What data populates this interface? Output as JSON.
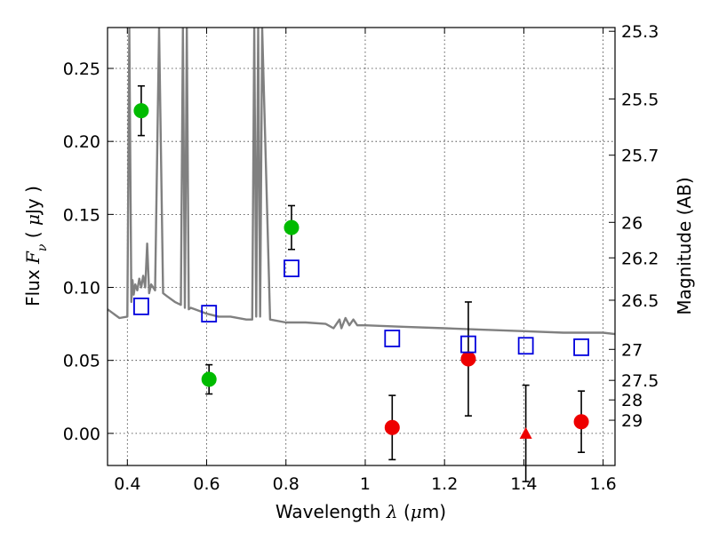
{
  "chart_data": {
    "type": "scatter",
    "title": "",
    "xlabel": {
      "prefix": "Wavelength  ",
      "symbol": "λ",
      "suffix": " (",
      "unit_symbol": "μ",
      "unit_rest": "m)"
    },
    "ylabel": {
      "prefix": "Flux  ",
      "symbol": "F",
      "subscript": "ν",
      "suffix": "  ( ",
      "unit_symbol": "μ",
      "unit_rest": "Jy )"
    },
    "y2label": "Magnitude (AB)",
    "xlim": [
      0.35,
      1.63
    ],
    "ylim": [
      -0.022,
      0.278
    ],
    "grid": true,
    "xticks": [
      {
        "value": 0.4,
        "label": "0.4"
      },
      {
        "value": 0.6,
        "label": "0.6"
      },
      {
        "value": 0.8,
        "label": "0.8"
      },
      {
        "value": 1.0,
        "label": "1"
      },
      {
        "value": 1.2,
        "label": "1.2"
      },
      {
        "value": 1.4,
        "label": "1.4"
      },
      {
        "value": 1.6,
        "label": "1.6"
      }
    ],
    "yticks": [
      {
        "value": 0.0,
        "label": "0.00"
      },
      {
        "value": 0.05,
        "label": "0.05"
      },
      {
        "value": 0.1,
        "label": "0.10"
      },
      {
        "value": 0.15,
        "label": "0.15"
      },
      {
        "value": 0.2,
        "label": "0.20"
      },
      {
        "value": 0.25,
        "label": "0.25"
      }
    ],
    "y2ticks": [
      {
        "label": "25.3",
        "mag": 25.3
      },
      {
        "label": "25.5",
        "mag": 25.5
      },
      {
        "label": "25.7",
        "mag": 25.7
      },
      {
        "label": "26",
        "mag": 26.0
      },
      {
        "label": "26.2",
        "mag": 26.2
      },
      {
        "label": "26.5",
        "mag": 26.5
      },
      {
        "label": "27",
        "mag": 27.0
      },
      {
        "label": "27.5",
        "mag": 27.5
      },
      {
        "label": "28",
        "mag": 28.0
      },
      {
        "label": "29",
        "mag": 29.0
      }
    ],
    "model_spectrum": {
      "color": "#808080",
      "x": [
        0.35,
        0.38,
        0.4,
        0.405,
        0.41,
        0.413,
        0.416,
        0.42,
        0.425,
        0.43,
        0.435,
        0.44,
        0.445,
        0.45,
        0.455,
        0.46,
        0.47,
        0.48,
        0.49,
        0.5,
        0.52,
        0.535,
        0.54,
        0.545,
        0.55,
        0.555,
        0.56,
        0.58,
        0.6,
        0.63,
        0.66,
        0.7,
        0.715,
        0.72,
        0.725,
        0.73,
        0.735,
        0.74,
        0.76,
        0.8,
        0.85,
        0.9,
        0.92,
        0.935,
        0.94,
        0.95,
        0.96,
        0.97,
        0.98,
        1.0,
        1.1,
        1.2,
        1.3,
        1.4,
        1.5,
        1.6,
        1.63
      ],
      "y": [
        0.085,
        0.079,
        0.08,
        0.28,
        0.09,
        0.105,
        0.095,
        0.102,
        0.098,
        0.106,
        0.1,
        0.108,
        0.1,
        0.13,
        0.096,
        0.102,
        0.098,
        0.28,
        0.096,
        0.094,
        0.09,
        0.088,
        0.28,
        0.086,
        0.28,
        0.085,
        0.086,
        0.084,
        0.082,
        0.08,
        0.08,
        0.078,
        0.078,
        0.28,
        0.08,
        0.28,
        0.08,
        0.28,
        0.078,
        0.076,
        0.076,
        0.075,
        0.072,
        0.078,
        0.072,
        0.079,
        0.074,
        0.078,
        0.074,
        0.074,
        0.073,
        0.072,
        0.071,
        0.07,
        0.069,
        0.069,
        0.068
      ]
    },
    "series": [
      {
        "marker": "circle",
        "color": "#00bb00",
        "points": [
          {
            "x": 0.435,
            "y": 0.221,
            "err": 0.017
          },
          {
            "x": 0.606,
            "y": 0.037,
            "err": 0.01
          },
          {
            "x": 0.814,
            "y": 0.141,
            "err": 0.015
          }
        ]
      },
      {
        "marker": "circle",
        "color": "#ee0000",
        "points": [
          {
            "x": 1.068,
            "y": 0.004,
            "err": 0.022
          },
          {
            "x": 1.26,
            "y": 0.051,
            "err": 0.039
          },
          {
            "x": 1.545,
            "y": 0.008,
            "err": 0.021
          }
        ]
      },
      {
        "marker": "triangle",
        "color": "#ee0000",
        "points": [
          {
            "x": 1.405,
            "y": 0.0,
            "err": 0.033
          }
        ]
      },
      {
        "marker": "open-square",
        "color": "#0000dd",
        "points": [
          {
            "x": 0.435,
            "y": 0.087
          },
          {
            "x": 0.606,
            "y": 0.082
          },
          {
            "x": 0.814,
            "y": 0.113
          },
          {
            "x": 1.068,
            "y": 0.065
          },
          {
            "x": 1.26,
            "y": 0.061
          },
          {
            "x": 1.405,
            "y": 0.06
          },
          {
            "x": 1.545,
            "y": 0.059
          }
        ]
      }
    ]
  }
}
